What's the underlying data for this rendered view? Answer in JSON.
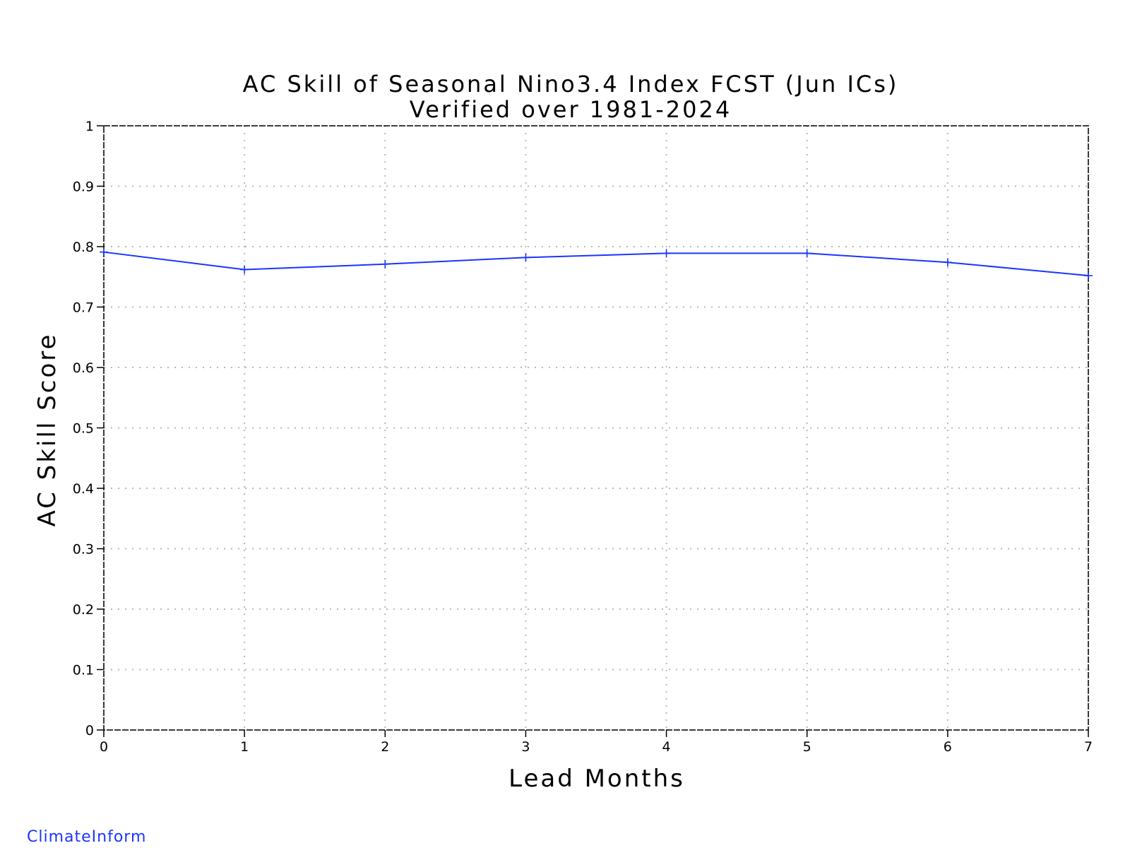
{
  "chart_data": {
    "type": "line",
    "title": "AC Skill of Seasonal Nino3.4 Index FCST (Jun ICs)",
    "subtitle": "Verified over 1981-2024",
    "xlabel": "Lead Months",
    "ylabel": "AC Skill Score",
    "x": [
      0,
      1,
      2,
      3,
      4,
      5,
      6,
      7
    ],
    "series": [
      {
        "values": [
          0.791,
          0.762,
          0.771,
          0.782,
          0.789,
          0.789,
          0.774,
          0.752
        ],
        "color": "#1a35ff",
        "marker": "plus"
      }
    ],
    "xlim": [
      0,
      7
    ],
    "ylim": [
      0,
      1
    ],
    "xticks": [
      "0",
      "1",
      "2",
      "3",
      "4",
      "5",
      "6",
      "7"
    ],
    "yticks": [
      "0",
      "0.1",
      "0.2",
      "0.3",
      "0.4",
      "0.5",
      "0.6",
      "0.7",
      "0.8",
      "0.9",
      "1"
    ],
    "grid": true,
    "legend": "none"
  },
  "footer": {
    "credit": "ClimateInform",
    "credit_color": "#1a35ff"
  }
}
